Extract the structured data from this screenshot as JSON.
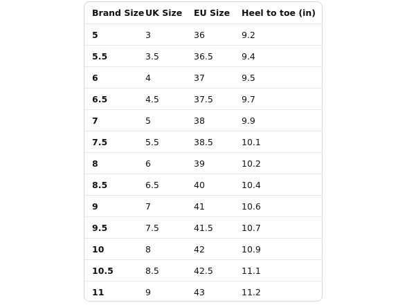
{
  "table": {
    "header": [
      "Brand Size",
      "UK Size",
      "EU Size",
      "Heel to toe (in)"
    ],
    "rows": [
      [
        "5",
        "3",
        "36",
        "9.2"
      ],
      [
        "5.5",
        "3.5",
        "36.5",
        "9.4"
      ],
      [
        "6",
        "4",
        "37",
        "9.5"
      ],
      [
        "6.5",
        "4.5",
        "37.5",
        "9.7"
      ],
      [
        "7",
        "5",
        "38",
        "9.9"
      ],
      [
        "7.5",
        "5.5",
        "38.5",
        "10.1"
      ],
      [
        "8",
        "6",
        "39",
        "10.2"
      ],
      [
        "8.5",
        "6.5",
        "40",
        "10.4"
      ],
      [
        "9",
        "7",
        "41",
        "10.6"
      ],
      [
        "9.5",
        "7.5",
        "41.5",
        "10.7"
      ],
      [
        "10",
        "8",
        "42",
        "10.9"
      ],
      [
        "10.5",
        "8.5",
        "42.5",
        "11.1"
      ],
      [
        "11",
        "9",
        "43",
        "11.2"
      ]
    ]
  }
}
